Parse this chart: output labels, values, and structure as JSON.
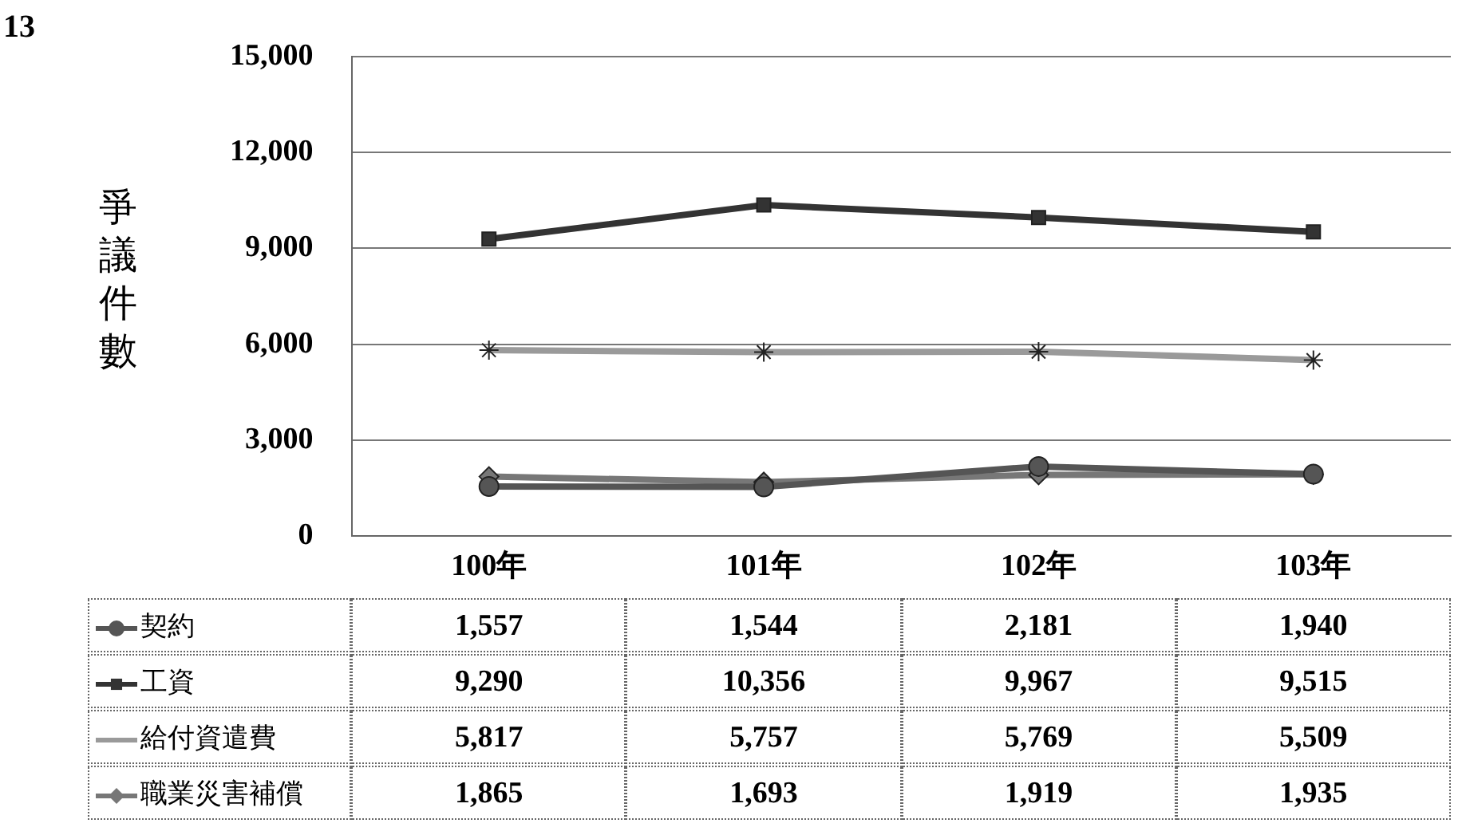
{
  "chart_data": {
    "type": "line",
    "ylabel": "爭議件數",
    "annotations": [
      "13"
    ],
    "categories": [
      "100年",
      "101年",
      "102年",
      "103年"
    ],
    "series": [
      {
        "name": "契約",
        "color": "#555555",
        "marker": "circle",
        "values": [
          1557,
          1544,
          2181,
          1940
        ],
        "value_labels": [
          "1,557",
          "1,544",
          "2,181",
          "1,940"
        ]
      },
      {
        "name": "工資",
        "color": "#333333",
        "marker": "square",
        "values": [
          9290,
          10356,
          9967,
          9515
        ],
        "value_labels": [
          "9,290",
          "10,356",
          "9,967",
          "9,515"
        ]
      },
      {
        "name": "給付資遣費",
        "color": "#9a9a9a",
        "marker": "cross",
        "values": [
          5817,
          5757,
          5769,
          5509
        ],
        "value_labels": [
          "5,817",
          "5,757",
          "5,769",
          "5,509"
        ]
      },
      {
        "name": "職業災害補償",
        "color": "#777777",
        "marker": "diamond",
        "values": [
          1865,
          1693,
          1919,
          1935
        ],
        "value_labels": [
          "1,865",
          "1,693",
          "1,919",
          "1,935"
        ]
      }
    ],
    "ylim": [
      0,
      15000
    ],
    "yticks": [
      0,
      {
        "value": 3000,
        "label": "3,000"
      },
      {
        "value": 6000,
        "label": "6,000"
      },
      {
        "value": 9000,
        "label": "9,000"
      },
      {
        "value": 12000,
        "label": "12,000"
      },
      {
        "value": 15000,
        "label": "15,000"
      }
    ],
    "grid": "y",
    "legend": "bottom"
  }
}
